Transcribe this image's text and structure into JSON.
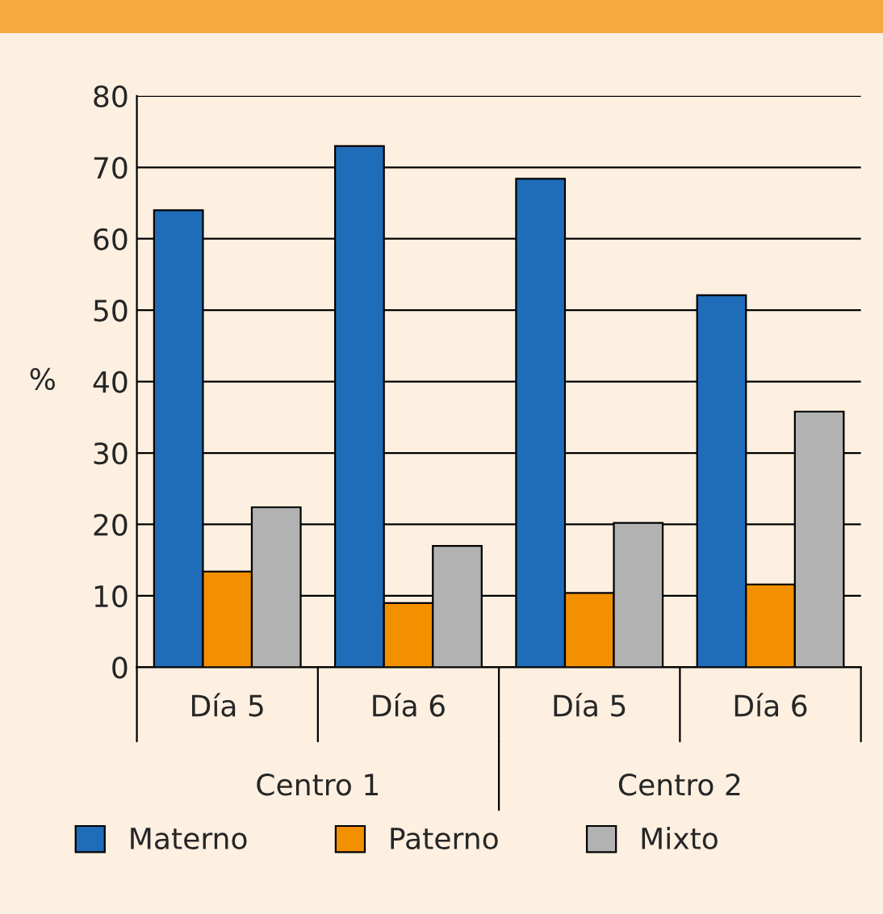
{
  "chart_data": {
    "type": "bar",
    "ylabel": "%",
    "categories": [
      "Día 5",
      "Día 6",
      "Día 5",
      "Día 6"
    ],
    "series": [
      {
        "name": "Materno",
        "color": "#1f6db8",
        "values": [
          64,
          73,
          68.4,
          52.1
        ]
      },
      {
        "name": "Paterno",
        "color": "#f39000",
        "values": [
          13.4,
          9,
          10.4,
          11.6
        ]
      },
      {
        "name": "Mixto",
        "color": "#b2b2b2",
        "values": [
          22.4,
          17,
          20.2,
          35.8
        ]
      }
    ],
    "annotations": [
      "Centro 1",
      "Centro 2"
    ],
    "ylim": [
      0,
      80
    ],
    "yticks": [
      0,
      10,
      20,
      30,
      40,
      50,
      60,
      70,
      80
    ],
    "grid": "y",
    "legend": "bottom"
  }
}
